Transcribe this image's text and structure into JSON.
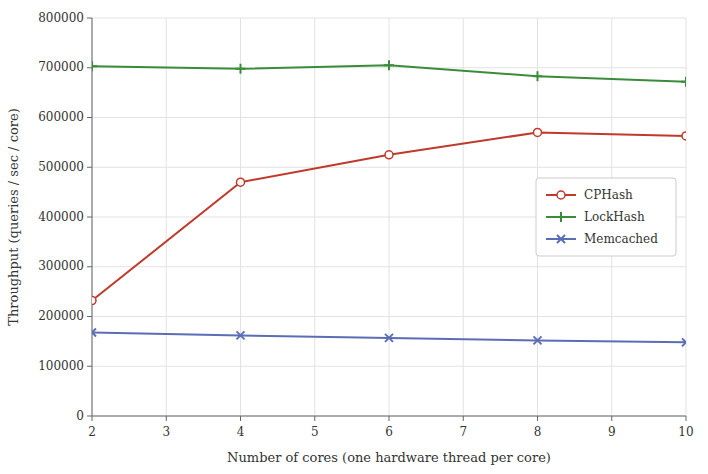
{
  "chart_data": {
    "type": "line",
    "x": [
      2,
      4,
      6,
      8,
      10
    ],
    "series": [
      {
        "name": "CPHash",
        "color": "#c0392b",
        "marker": "circle",
        "values": [
          232000,
          470000,
          525000,
          570000,
          563000
        ]
      },
      {
        "name": "LockHash",
        "color": "#3a8c3a",
        "marker": "plus",
        "values": [
          703000,
          698000,
          705000,
          683000,
          672000
        ]
      },
      {
        "name": "Memcached",
        "color": "#5b6db5",
        "marker": "x",
        "values": [
          168000,
          162000,
          157000,
          152000,
          148000
        ]
      }
    ],
    "xlabel": "Number of cores (one hardware thread per core)",
    "ylabel": "Throughput (queries / sec / core)",
    "xlim": [
      2,
      10
    ],
    "ylim": [
      0,
      800000
    ],
    "xticks": [
      2,
      3,
      4,
      5,
      6,
      7,
      8,
      9,
      10
    ],
    "yticks": [
      0,
      100000,
      200000,
      300000,
      400000,
      500000,
      600000,
      700000,
      800000
    ],
    "grid": true,
    "legend": "right"
  }
}
